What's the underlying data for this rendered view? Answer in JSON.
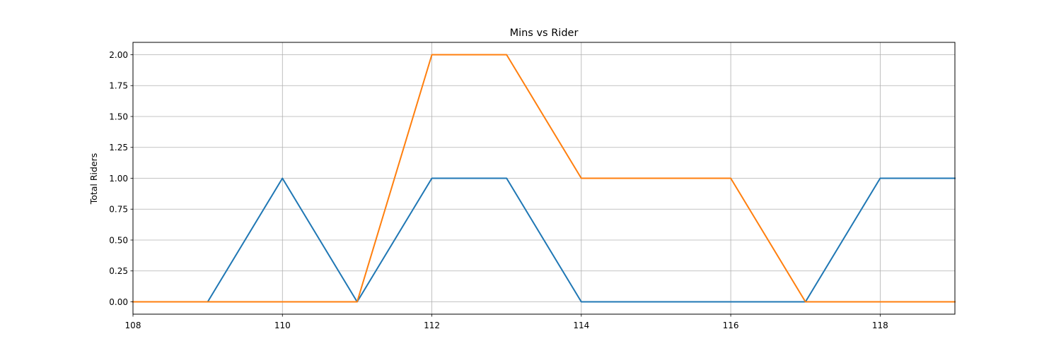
{
  "chart_data": {
    "type": "line",
    "title": "Mins vs Rider",
    "xlabel": "",
    "ylabel": "Total Riders",
    "xlim": [
      108,
      119
    ],
    "ylim": [
      -0.1,
      2.1
    ],
    "xticks": [
      108,
      110,
      112,
      114,
      116,
      118
    ],
    "yticks": [
      0.0,
      0.25,
      0.5,
      0.75,
      1.0,
      1.25,
      1.5,
      1.75,
      2.0
    ],
    "xtick_labels": [
      "108",
      "110",
      "112",
      "114",
      "116",
      "118"
    ],
    "ytick_labels": [
      "0.00",
      "0.25",
      "0.50",
      "0.75",
      "1.00",
      "1.25",
      "1.50",
      "1.75",
      "2.00"
    ],
    "grid": true,
    "x": [
      108,
      109,
      110,
      111,
      112,
      113,
      114,
      115,
      116,
      117,
      118,
      119
    ],
    "series": [
      {
        "color": "#1f77b4",
        "values": [
          0,
          0,
          1,
          0,
          1,
          1,
          0,
          0,
          0,
          0,
          1,
          1
        ]
      },
      {
        "color": "#ff7f0e",
        "values": [
          0,
          0,
          0,
          0,
          2,
          2,
          1,
          1,
          1,
          0,
          0,
          0
        ]
      }
    ]
  }
}
